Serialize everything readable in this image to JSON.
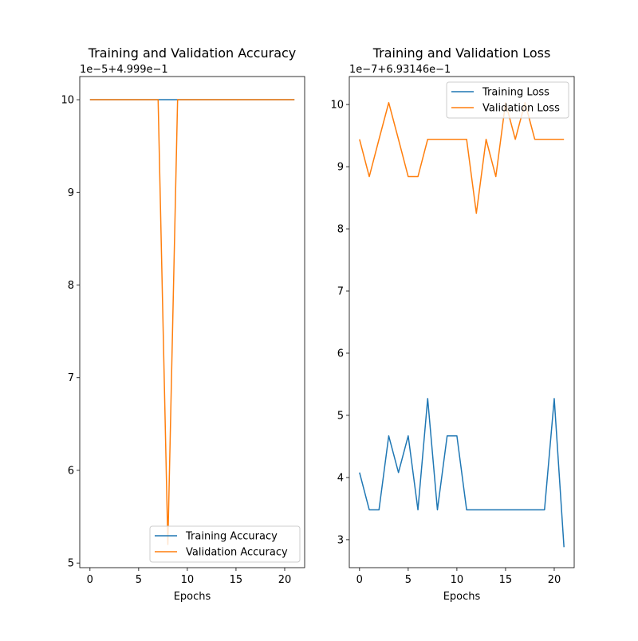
{
  "colors": {
    "series_1": "#1f77b4",
    "series_2": "#ff7f0e",
    "axes": "#000000",
    "legend_border": "#cccccc"
  },
  "chart_data": [
    {
      "type": "line",
      "title": "Training and Validation Accuracy",
      "xlabel": "Epochs",
      "ylabel": "",
      "offset_text": "1e−5+4.999e−1",
      "xlim": [
        -1.05,
        22.05
      ],
      "ylim": [
        4.95,
        10.25
      ],
      "grid": false,
      "legend_position": "lower-right",
      "xticks": [
        0,
        5,
        10,
        15,
        20
      ],
      "xtick_labels": [
        "0",
        "5",
        "10",
        "15",
        "20"
      ],
      "yticks": [
        5,
        6,
        7,
        8,
        9,
        10
      ],
      "ytick_labels": [
        "5",
        "6",
        "7",
        "8",
        "9",
        "10"
      ],
      "x": [
        0,
        1,
        2,
        3,
        4,
        5,
        6,
        7,
        8,
        9,
        10,
        11,
        12,
        13,
        14,
        15,
        16,
        17,
        18,
        19,
        20,
        21
      ],
      "series": [
        {
          "name": "Training Accuracy",
          "values": [
            10,
            10,
            10,
            10,
            10,
            10,
            10,
            10,
            10,
            10,
            10,
            10,
            10,
            10,
            10,
            10,
            10,
            10,
            10,
            10,
            10,
            10
          ]
        },
        {
          "name": "Validation Accuracy",
          "values": [
            10,
            10,
            10,
            10,
            10,
            10,
            10,
            10,
            5.2,
            10,
            10,
            10,
            10,
            10,
            10,
            10,
            10,
            10,
            10,
            10,
            10,
            10
          ]
        }
      ]
    },
    {
      "type": "line",
      "title": "Training and Validation Loss",
      "xlabel": "Epochs",
      "ylabel": "",
      "offset_text": "1e−7+6.93146e−1",
      "xlim": [
        -1.05,
        22.05
      ],
      "ylim": [
        2.55,
        10.45
      ],
      "grid": false,
      "legend_position": "upper-right",
      "xticks": [
        0,
        5,
        10,
        15,
        20
      ],
      "xtick_labels": [
        "0",
        "5",
        "10",
        "15",
        "20"
      ],
      "yticks": [
        3,
        4,
        5,
        6,
        7,
        8,
        9,
        10
      ],
      "ytick_labels": [
        "3",
        "4",
        "5",
        "6",
        "7",
        "8",
        "9",
        "10"
      ],
      "x": [
        0,
        1,
        2,
        3,
        4,
        5,
        6,
        7,
        8,
        9,
        10,
        11,
        12,
        13,
        14,
        15,
        16,
        17,
        18,
        19,
        20,
        21
      ],
      "series": [
        {
          "name": "Training Loss",
          "values": [
            4.08,
            3.48,
            3.48,
            4.67,
            4.08,
            4.67,
            3.48,
            5.27,
            3.48,
            4.67,
            4.67,
            3.48,
            3.48,
            3.48,
            3.48,
            3.48,
            3.48,
            3.48,
            3.48,
            3.48,
            5.27,
            2.88
          ]
        },
        {
          "name": "Validation Loss",
          "values": [
            9.44,
            8.84,
            9.44,
            10.03,
            9.44,
            8.84,
            8.84,
            9.44,
            9.44,
            9.44,
            9.44,
            9.44,
            8.25,
            9.44,
            8.84,
            10.03,
            9.44,
            10.03,
            9.44,
            9.44,
            9.44,
            9.44
          ]
        }
      ]
    }
  ]
}
